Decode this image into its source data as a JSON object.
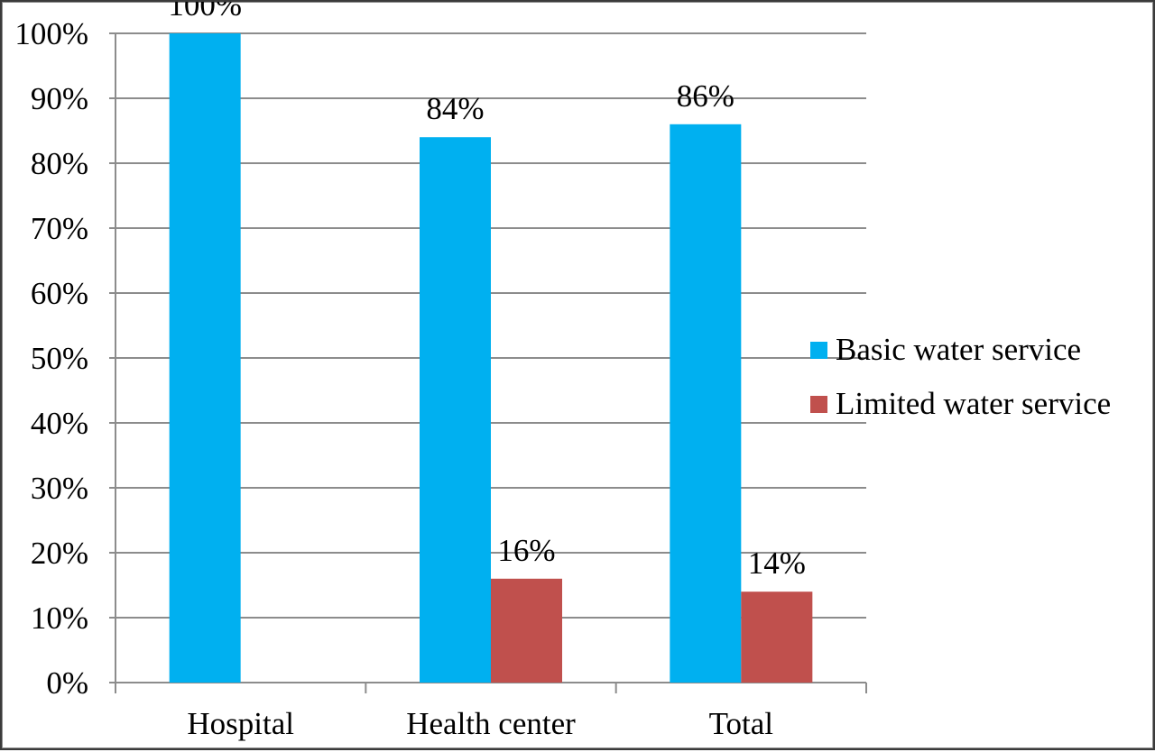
{
  "chart_data": {
    "type": "bar",
    "categories": [
      "Hospital",
      "Health center",
      "Total"
    ],
    "series": [
      {
        "name": "Basic water service",
        "color": "#00b0f0",
        "values": [
          100,
          84,
          86
        ],
        "labels": [
          "100%",
          "84%",
          "86%"
        ]
      },
      {
        "name": "Limited water service",
        "color": "#c0504d",
        "values": [
          0,
          16,
          14
        ],
        "labels": [
          "",
          "16%",
          "14%"
        ]
      }
    ],
    "ylim": [
      0,
      100
    ],
    "yticks": [
      "0%",
      "10%",
      "20%",
      "30%",
      "40%",
      "50%",
      "60%",
      "70%",
      "80%",
      "90%",
      "100%"
    ],
    "grid": true,
    "legend_position": "right",
    "title": "",
    "xlabel": "",
    "ylabel": ""
  }
}
